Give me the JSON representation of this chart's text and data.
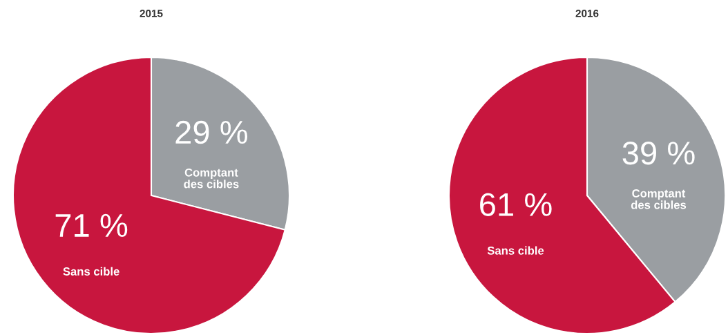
{
  "chart_data": [
    {
      "type": "pie",
      "title": "2015",
      "categories": [
        "Comptant\ndes cibles",
        "Sans cible"
      ],
      "values": [
        29,
        71
      ],
      "colors": [
        "#9a9ea2",
        "#c8163e"
      ],
      "value_labels": [
        "29 %",
        "71 %"
      ]
    },
    {
      "type": "pie",
      "title": "2016",
      "categories": [
        "Comptant\ndes cibles",
        "Sans cible"
      ],
      "values": [
        39,
        61
      ],
      "colors": [
        "#9a9ea2",
        "#c8163e"
      ],
      "value_labels": [
        "39 %",
        "61 %"
      ]
    }
  ]
}
